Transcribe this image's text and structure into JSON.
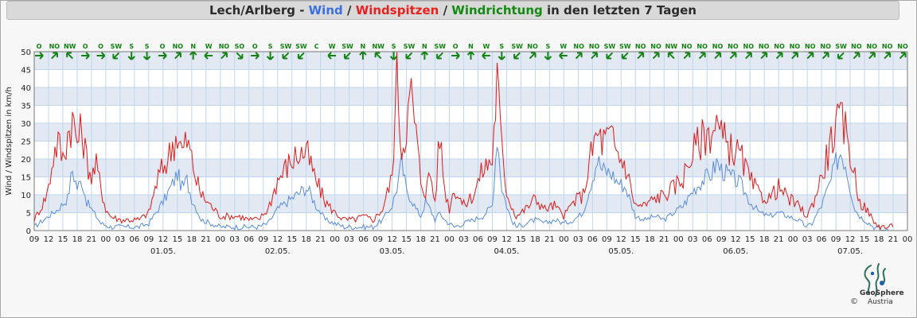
{
  "title": {
    "station": "Lech/Arlberg",
    "sep1": " - ",
    "wind": "Wind",
    "sep2": " / ",
    "gusts": "Windspitzen",
    "sep3": " / ",
    "direction": "Windrichtung",
    "suffix": " in den letzten 7 Tagen"
  },
  "colors": {
    "wind": "#5b8cdc",
    "gusts": "#e01818",
    "direction": "#148214",
    "band": "#e3e9f3",
    "grid": "#bfd6ee"
  },
  "chart_data": {
    "type": "line",
    "ylabel": "Wind / Windspitzen in km/h",
    "ylim": [
      0,
      50
    ],
    "yticks": [
      0,
      5,
      10,
      15,
      20,
      25,
      30,
      35,
      40,
      45,
      50
    ],
    "xlim_hours": [
      0,
      183
    ],
    "hour_tick_labels": [
      "09",
      "12",
      "15",
      "18",
      "21",
      "00",
      "03",
      "06",
      "09",
      "12",
      "15",
      "18",
      "21",
      "00",
      "03",
      "06",
      "09",
      "12",
      "15",
      "18",
      "21",
      "00",
      "03",
      "06",
      "09",
      "12",
      "15",
      "18",
      "21",
      "00",
      "03",
      "06",
      "09",
      "12",
      "15",
      "18",
      "21",
      "00",
      "03",
      "06",
      "09",
      "12",
      "15",
      "18",
      "21",
      "00",
      "03",
      "06",
      "09",
      "12",
      "15",
      "18",
      "21",
      "00",
      "03",
      "06",
      "09",
      "12",
      "15",
      "18",
      "21",
      "00"
    ],
    "date_labels": [
      "01.05.",
      "02.05.",
      "03.05.",
      "04.05.",
      "05.05.",
      "06.05.",
      "07.05."
    ],
    "x_unit": "hours since 30.04. 09:00",
    "series": [
      {
        "name": "Wind",
        "color": "#5b8cdc",
        "points": [
          [
            0,
            1
          ],
          [
            3,
            4
          ],
          [
            5,
            6
          ],
          [
            7,
            9
          ],
          [
            8,
            17
          ],
          [
            9,
            12
          ],
          [
            10,
            14
          ],
          [
            11,
            8
          ],
          [
            12,
            6
          ],
          [
            13,
            4
          ],
          [
            14,
            2
          ],
          [
            16,
            1
          ],
          [
            18,
            1
          ],
          [
            20,
            1
          ],
          [
            22,
            1
          ],
          [
            24,
            2
          ],
          [
            27,
            8
          ],
          [
            29,
            13
          ],
          [
            30,
            16
          ],
          [
            31,
            12
          ],
          [
            32,
            14
          ],
          [
            33,
            9
          ],
          [
            34,
            6
          ],
          [
            35,
            3
          ],
          [
            37,
            2
          ],
          [
            39,
            1
          ],
          [
            41,
            1
          ],
          [
            43,
            1
          ],
          [
            45,
            1
          ],
          [
            47,
            1
          ],
          [
            49,
            2
          ],
          [
            51,
            6
          ],
          [
            53,
            8
          ],
          [
            55,
            10
          ],
          [
            57,
            12
          ],
          [
            58,
            10
          ],
          [
            59,
            7
          ],
          [
            61,
            3
          ],
          [
            63,
            2
          ],
          [
            65,
            1
          ],
          [
            67,
            1
          ],
          [
            69,
            1
          ],
          [
            71,
            1
          ],
          [
            73,
            3
          ],
          [
            75,
            7
          ],
          [
            76,
            12
          ],
          [
            77,
            19
          ],
          [
            78,
            11
          ],
          [
            79,
            9
          ],
          [
            80,
            6
          ],
          [
            81,
            4
          ],
          [
            82,
            8
          ],
          [
            83,
            6
          ],
          [
            84,
            3
          ],
          [
            85,
            5
          ],
          [
            86,
            3
          ],
          [
            87,
            2
          ],
          [
            88,
            1
          ],
          [
            90,
            2
          ],
          [
            92,
            3
          ],
          [
            94,
            4
          ],
          [
            96,
            7
          ],
          [
            97,
            27
          ],
          [
            98,
            12
          ],
          [
            99,
            7
          ],
          [
            100,
            3
          ],
          [
            101,
            1
          ],
          [
            103,
            2
          ],
          [
            105,
            3
          ],
          [
            107,
            2
          ],
          [
            109,
            3
          ],
          [
            111,
            2
          ],
          [
            113,
            3
          ],
          [
            115,
            5
          ],
          [
            117,
            15
          ],
          [
            118,
            20
          ],
          [
            119,
            17
          ],
          [
            121,
            16
          ],
          [
            122,
            14
          ],
          [
            123,
            13
          ],
          [
            124,
            12
          ],
          [
            125,
            8
          ],
          [
            126,
            4
          ],
          [
            128,
            3
          ],
          [
            130,
            4
          ],
          [
            132,
            3
          ],
          [
            134,
            5
          ],
          [
            136,
            7
          ],
          [
            138,
            11
          ],
          [
            140,
            14
          ],
          [
            142,
            16
          ],
          [
            143,
            19
          ],
          [
            144,
            17
          ],
          [
            146,
            15
          ],
          [
            148,
            13
          ],
          [
            150,
            8
          ],
          [
            152,
            5
          ],
          [
            154,
            4
          ],
          [
            156,
            5
          ],
          [
            158,
            4
          ],
          [
            160,
            3
          ],
          [
            162,
            1
          ],
          [
            163,
            2
          ],
          [
            165,
            7
          ],
          [
            167,
            14
          ],
          [
            168,
            19
          ],
          [
            169,
            22
          ],
          [
            170,
            19
          ],
          [
            171,
            12
          ],
          [
            172,
            6
          ],
          [
            173,
            4
          ],
          [
            175,
            2
          ],
          [
            176,
            1
          ],
          [
            178,
            0
          ],
          [
            180,
            0
          ]
        ]
      },
      {
        "name": "Windspitzen",
        "color": "#e01818",
        "points": [
          [
            0,
            3
          ],
          [
            2,
            8
          ],
          [
            3,
            12
          ],
          [
            4,
            21
          ],
          [
            5,
            25
          ],
          [
            6,
            20
          ],
          [
            7,
            27
          ],
          [
            8,
            31
          ],
          [
            9,
            25
          ],
          [
            10,
            28
          ],
          [
            11,
            20
          ],
          [
            12,
            15
          ],
          [
            13,
            18
          ],
          [
            14,
            12
          ],
          [
            15,
            6
          ],
          [
            16,
            4
          ],
          [
            18,
            3
          ],
          [
            20,
            3
          ],
          [
            22,
            3
          ],
          [
            24,
            5
          ],
          [
            26,
            15
          ],
          [
            28,
            20
          ],
          [
            29,
            24
          ],
          [
            30,
            27
          ],
          [
            31,
            22
          ],
          [
            32,
            25
          ],
          [
            33,
            20
          ],
          [
            34,
            14
          ],
          [
            35,
            10
          ],
          [
            37,
            7
          ],
          [
            39,
            4
          ],
          [
            41,
            4
          ],
          [
            43,
            4
          ],
          [
            45,
            3
          ],
          [
            47,
            3
          ],
          [
            49,
            6
          ],
          [
            51,
            14
          ],
          [
            53,
            18
          ],
          [
            55,
            21
          ],
          [
            57,
            22
          ],
          [
            58,
            18
          ],
          [
            59,
            14
          ],
          [
            61,
            8
          ],
          [
            63,
            5
          ],
          [
            65,
            3
          ],
          [
            67,
            3
          ],
          [
            69,
            4
          ],
          [
            71,
            3
          ],
          [
            73,
            6
          ],
          [
            75,
            15
          ],
          [
            76,
            45
          ],
          [
            77,
            22
          ],
          [
            78,
            30
          ],
          [
            79,
            38
          ],
          [
            80,
            27
          ],
          [
            81,
            14
          ],
          [
            82,
            11
          ],
          [
            83,
            16
          ],
          [
            84,
            8
          ],
          [
            85,
            27
          ],
          [
            86,
            12
          ],
          [
            87,
            6
          ],
          [
            88,
            12
          ],
          [
            90,
            7
          ],
          [
            92,
            10
          ],
          [
            94,
            17
          ],
          [
            96,
            20
          ],
          [
            97,
            43
          ],
          [
            98,
            22
          ],
          [
            99,
            11
          ],
          [
            100,
            7
          ],
          [
            101,
            4
          ],
          [
            103,
            6
          ],
          [
            105,
            9
          ],
          [
            107,
            6
          ],
          [
            109,
            7
          ],
          [
            111,
            4
          ],
          [
            113,
            8
          ],
          [
            115,
            10
          ],
          [
            117,
            23
          ],
          [
            118,
            27
          ],
          [
            119,
            25
          ],
          [
            121,
            26
          ],
          [
            122,
            22
          ],
          [
            123,
            20
          ],
          [
            124,
            18
          ],
          [
            125,
            12
          ],
          [
            126,
            7
          ],
          [
            128,
            7
          ],
          [
            130,
            9
          ],
          [
            132,
            10
          ],
          [
            134,
            12
          ],
          [
            136,
            15
          ],
          [
            138,
            22
          ],
          [
            140,
            26
          ],
          [
            142,
            28
          ],
          [
            143,
            30
          ],
          [
            144,
            26
          ],
          [
            146,
            23
          ],
          [
            148,
            21
          ],
          [
            150,
            14
          ],
          [
            152,
            10
          ],
          [
            154,
            9
          ],
          [
            156,
            12
          ],
          [
            158,
            9
          ],
          [
            160,
            7
          ],
          [
            162,
            4
          ],
          [
            163,
            7
          ],
          [
            165,
            15
          ],
          [
            167,
            25
          ],
          [
            168,
            29
          ],
          [
            169,
            30
          ],
          [
            170,
            28
          ],
          [
            171,
            22
          ],
          [
            172,
            15
          ],
          [
            173,
            8
          ],
          [
            175,
            5
          ],
          [
            176,
            2
          ],
          [
            178,
            1
          ],
          [
            180,
            1
          ]
        ]
      }
    ],
    "direction_labels": [
      "O",
      "NO",
      "NW",
      "O",
      "O",
      "SW",
      "S",
      "S",
      "O",
      "NO",
      "N",
      "W",
      "NO",
      "SO",
      "O",
      "S",
      "SW",
      "SW",
      "C",
      "W",
      "SW",
      "N",
      "NW",
      "S",
      "SW",
      "N",
      "SW",
      "O",
      "N",
      "W",
      "S",
      "SW",
      "NO",
      "S",
      "W",
      "NO",
      "NO",
      "SW",
      "SW",
      "NO",
      "NO",
      "NW",
      "NO",
      "NO",
      "NO",
      "NO",
      "NO",
      "NO",
      "NO",
      "NO",
      "NO",
      "NO",
      "SW",
      "NO",
      "NO",
      "NO",
      "NO"
    ]
  },
  "logo": {
    "name": "GeoSphere",
    "sub": "Austria",
    "copyright": "©"
  }
}
